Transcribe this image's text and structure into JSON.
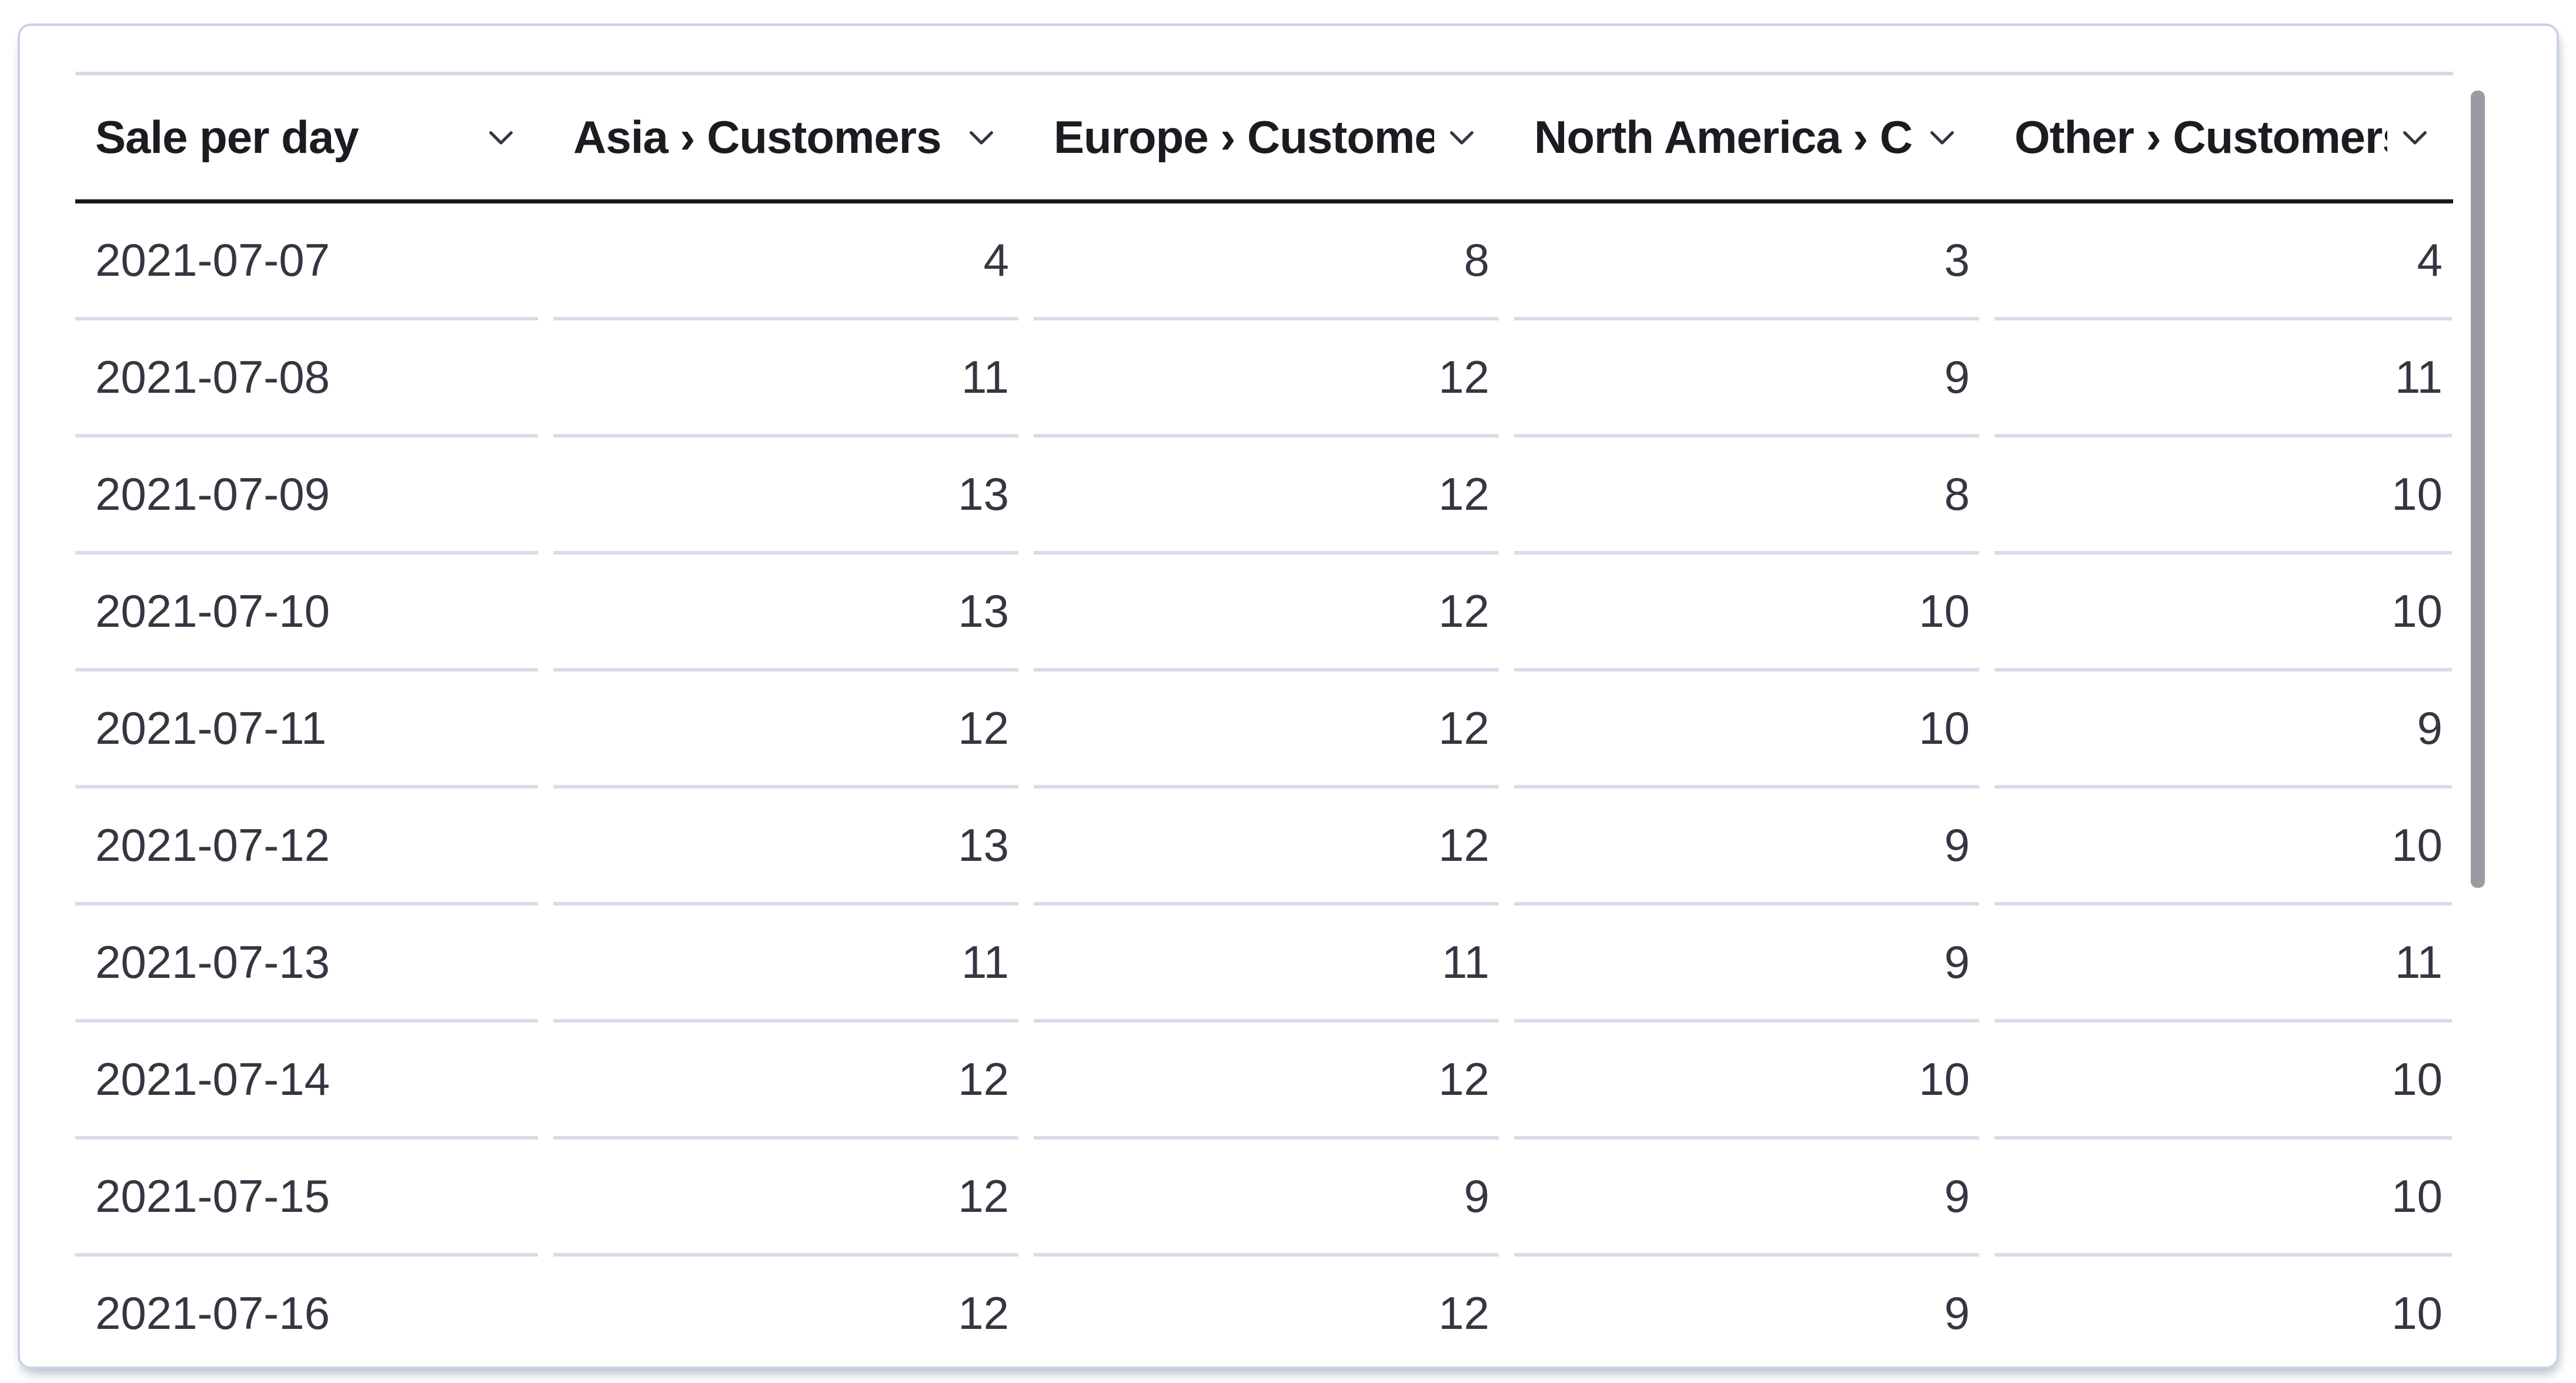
{
  "panel": {
    "type": "data-table"
  },
  "table": {
    "columns": [
      {
        "label": "Sale per day",
        "align": "left"
      },
      {
        "label": "Asia › Customers",
        "align": "right"
      },
      {
        "label": "Europe › Customers",
        "align": "right"
      },
      {
        "label": "North America › Customers",
        "align": "right"
      },
      {
        "label": "Other › Customers",
        "align": "right"
      }
    ],
    "rows": [
      [
        "2021-07-07",
        4,
        8,
        3,
        4
      ],
      [
        "2021-07-08",
        11,
        12,
        9,
        11
      ],
      [
        "2021-07-09",
        13,
        12,
        8,
        10
      ],
      [
        "2021-07-10",
        13,
        12,
        10,
        10
      ],
      [
        "2021-07-11",
        12,
        12,
        10,
        9
      ],
      [
        "2021-07-12",
        13,
        12,
        9,
        10
      ],
      [
        "2021-07-13",
        11,
        11,
        9,
        11
      ],
      [
        "2021-07-14",
        12,
        12,
        10,
        10
      ],
      [
        "2021-07-15",
        12,
        9,
        9,
        10
      ],
      [
        "2021-07-16",
        12,
        12,
        9,
        10
      ]
    ]
  },
  "icons": {
    "header_action": "chevron-down-icon"
  },
  "colors": {
    "header_text": "#1a1c21",
    "cell_text": "#343741",
    "header_underline": "#17181c",
    "row_separator": "#d6dde9",
    "top_rule": "#d3dae6",
    "card_border": "#c9d3e4",
    "scrollbar_thumb": "#9a9ba2",
    "background": "#ffffff"
  },
  "scrollbar": {
    "visible": true,
    "orientation": "vertical"
  }
}
